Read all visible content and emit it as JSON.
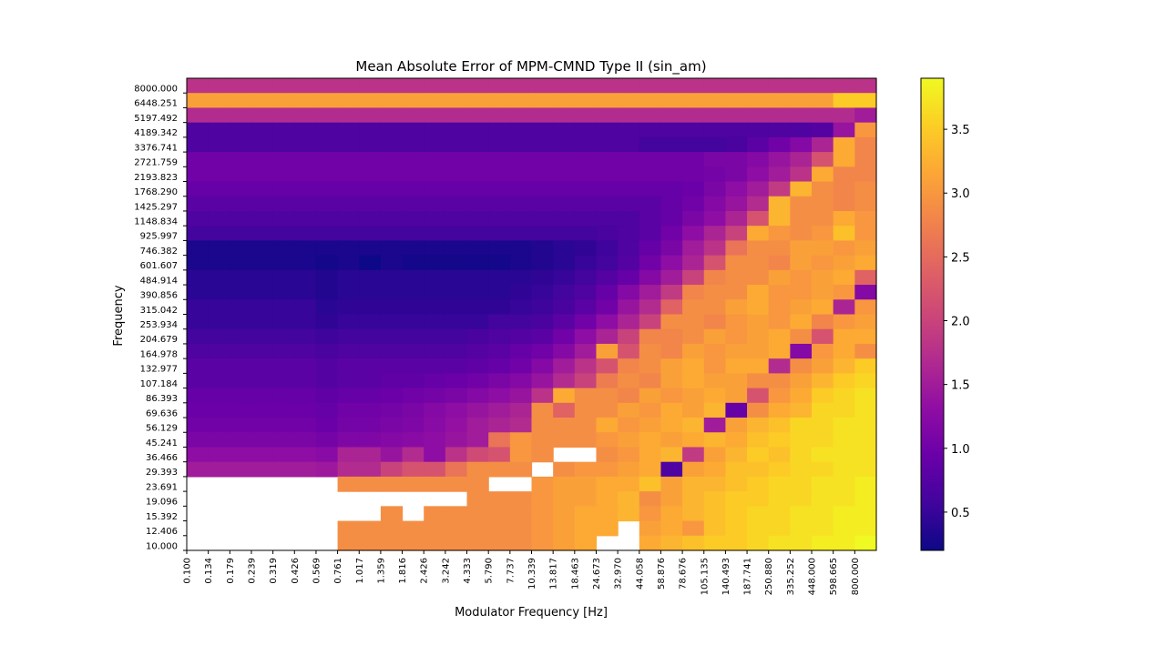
{
  "chart_data": {
    "type": "heatmap",
    "title": "Mean Absolute Error of MPM-CMND Type II  (sin_am)",
    "xlabel": "Modulator Frequency [Hz]",
    "ylabel": "Frequency",
    "colormap": "plasma",
    "colorbar": {
      "min": 0.2,
      "max": 3.9,
      "ticks": [
        "0.5",
        "1.0",
        "1.5",
        "2.0",
        "2.5",
        "3.0",
        "3.5"
      ]
    },
    "x_tick_labels": [
      "0.100",
      "0.134",
      "0.179",
      "0.239",
      "0.319",
      "0.426",
      "0.569",
      "0.761",
      "1.017",
      "1.359",
      "1.816",
      "2.426",
      "3.242",
      "4.333",
      "5.790",
      "7.737",
      "10.339",
      "13.817",
      "18.463",
      "24.673",
      "32.970",
      "44.058",
      "58.876",
      "78.676",
      "105.135",
      "140.493",
      "187.741",
      "250.880",
      "335.252",
      "448.000",
      "598.665",
      "800.000"
    ],
    "y_tick_labels": [
      "8000.000",
      "6448.251",
      "5197.492",
      "4189.342",
      "3376.741",
      "2721.759",
      "2193.823",
      "1768.290",
      "1425.297",
      "1148.834",
      "925.997",
      "746.382",
      "601.607",
      "484.914",
      "390.856",
      "315.042",
      "253.934",
      "204.679",
      "164.978",
      "132.977",
      "107.184",
      "86.393",
      "69.636",
      "56.129",
      "45.241",
      "36.466",
      "29.393",
      "23.691",
      "19.096",
      "15.392",
      "12.406",
      "10.000"
    ],
    "n_rows": 32,
    "n_cols": 32,
    "values_note": "rows listed top (8000.000) to bottom (10.000); columns left (0.100) to right (800.000); null = missing cell",
    "values": [
      [
        1.8,
        1.8,
        1.8,
        1.8,
        1.8,
        1.8,
        1.8,
        1.8,
        1.8,
        1.8,
        1.8,
        1.8,
        1.8,
        1.8,
        1.8,
        1.8,
        1.8,
        1.8,
        1.8,
        1.8,
        1.8,
        1.8,
        1.8,
        1.8,
        1.8,
        1.8,
        1.8,
        1.8,
        1.8,
        1.8,
        1.8,
        1.8
      ],
      [
        3.1,
        3.1,
        3.1,
        3.1,
        3.1,
        3.1,
        3.1,
        3.1,
        3.1,
        3.1,
        3.1,
        3.1,
        3.1,
        3.1,
        3.1,
        3.1,
        3.1,
        3.1,
        3.1,
        3.1,
        3.1,
        3.1,
        3.1,
        3.1,
        3.1,
        3.1,
        3.1,
        3.1,
        3.1,
        3.1,
        3.5,
        3.5
      ],
      [
        1.7,
        1.7,
        1.7,
        1.7,
        1.7,
        1.7,
        1.7,
        1.7,
        1.7,
        1.7,
        1.7,
        1.7,
        1.7,
        1.7,
        1.7,
        1.7,
        1.7,
        1.7,
        1.7,
        1.7,
        1.7,
        1.7,
        1.7,
        1.7,
        1.7,
        1.7,
        1.7,
        1.7,
        1.7,
        1.7,
        1.7,
        1.5
      ],
      [
        0.7,
        0.7,
        0.7,
        0.7,
        0.7,
        0.7,
        0.7,
        0.7,
        0.7,
        0.7,
        0.7,
        0.7,
        0.7,
        0.7,
        0.7,
        0.7,
        0.7,
        0.7,
        0.7,
        0.7,
        0.7,
        0.7,
        0.7,
        0.7,
        0.7,
        0.7,
        0.7,
        0.7,
        0.7,
        0.75,
        1.4,
        3.0
      ],
      [
        0.7,
        0.7,
        0.7,
        0.7,
        0.7,
        0.7,
        0.7,
        0.7,
        0.7,
        0.7,
        0.7,
        0.7,
        0.7,
        0.7,
        0.7,
        0.7,
        0.7,
        0.7,
        0.7,
        0.7,
        0.7,
        0.6,
        0.6,
        0.6,
        0.6,
        0.65,
        0.8,
        1.0,
        1.2,
        1.6,
        3.2,
        2.8
      ],
      [
        1.0,
        1.0,
        1.0,
        1.0,
        1.0,
        1.0,
        1.0,
        1.0,
        1.0,
        1.0,
        1.0,
        1.0,
        1.0,
        1.0,
        1.0,
        1.0,
        1.0,
        1.0,
        1.0,
        1.0,
        1.0,
        1.0,
        1.0,
        1.0,
        1.1,
        1.1,
        1.2,
        1.4,
        1.6,
        2.2,
        3.2,
        2.8
      ],
      [
        1.0,
        1.0,
        1.0,
        1.0,
        1.0,
        1.0,
        1.0,
        1.0,
        1.0,
        1.0,
        1.0,
        1.0,
        1.0,
        1.0,
        1.0,
        1.0,
        1.0,
        1.0,
        1.0,
        1.0,
        1.0,
        1.0,
        1.0,
        1.0,
        1.05,
        1.1,
        1.3,
        1.5,
        1.8,
        3.2,
        2.8,
        2.8
      ],
      [
        0.9,
        0.9,
        0.9,
        0.9,
        0.9,
        0.9,
        0.9,
        0.9,
        0.9,
        0.9,
        0.9,
        0.9,
        0.9,
        0.9,
        0.9,
        0.9,
        0.9,
        0.9,
        0.9,
        0.9,
        0.9,
        0.9,
        0.9,
        0.95,
        1.1,
        1.3,
        1.5,
        1.9,
        3.3,
        2.9,
        2.8,
        2.9
      ],
      [
        0.8,
        0.8,
        0.8,
        0.8,
        0.8,
        0.8,
        0.8,
        0.8,
        0.8,
        0.8,
        0.8,
        0.8,
        0.8,
        0.8,
        0.8,
        0.8,
        0.8,
        0.8,
        0.8,
        0.8,
        0.8,
        0.8,
        0.9,
        1.0,
        1.2,
        1.4,
        1.7,
        3.3,
        2.9,
        2.9,
        2.8,
        2.9
      ],
      [
        0.7,
        0.7,
        0.7,
        0.7,
        0.7,
        0.7,
        0.7,
        0.7,
        0.7,
        0.7,
        0.7,
        0.7,
        0.7,
        0.7,
        0.7,
        0.7,
        0.7,
        0.7,
        0.7,
        0.7,
        0.7,
        0.8,
        0.9,
        1.1,
        1.3,
        1.6,
        2.2,
        3.3,
        2.9,
        2.9,
        3.2,
        3.0
      ],
      [
        0.6,
        0.6,
        0.6,
        0.6,
        0.6,
        0.6,
        0.6,
        0.6,
        0.6,
        0.6,
        0.6,
        0.6,
        0.6,
        0.6,
        0.6,
        0.6,
        0.6,
        0.6,
        0.6,
        0.65,
        0.7,
        0.8,
        1.0,
        1.3,
        1.6,
        2.0,
        3.2,
        3.0,
        2.9,
        3.0,
        3.4,
        3.0
      ],
      [
        0.3,
        0.3,
        0.3,
        0.3,
        0.3,
        0.3,
        0.3,
        0.3,
        0.3,
        0.3,
        0.3,
        0.3,
        0.3,
        0.3,
        0.3,
        0.3,
        0.35,
        0.4,
        0.45,
        0.55,
        0.7,
        0.9,
        1.1,
        1.5,
        1.8,
        2.6,
        2.9,
        2.9,
        3.1,
        3.1,
        3.0,
        3.1
      ],
      [
        0.3,
        0.3,
        0.3,
        0.3,
        0.3,
        0.3,
        0.25,
        0.3,
        0.2,
        0.3,
        0.25,
        0.25,
        0.25,
        0.25,
        0.25,
        0.3,
        0.35,
        0.4,
        0.5,
        0.6,
        0.75,
        1.0,
        1.3,
        1.6,
        2.2,
        2.9,
        2.9,
        2.8,
        3.1,
        3.0,
        3.1,
        3.2
      ],
      [
        0.4,
        0.4,
        0.4,
        0.4,
        0.4,
        0.4,
        0.35,
        0.4,
        0.4,
        0.4,
        0.4,
        0.4,
        0.4,
        0.4,
        0.4,
        0.4,
        0.45,
        0.5,
        0.6,
        0.75,
        0.9,
        1.2,
        1.5,
        2.0,
        2.8,
        2.9,
        2.9,
        3.1,
        3.0,
        3.1,
        3.2,
        2.4
      ],
      [
        0.4,
        0.4,
        0.4,
        0.4,
        0.4,
        0.4,
        0.35,
        0.4,
        0.4,
        0.4,
        0.4,
        0.4,
        0.4,
        0.4,
        0.4,
        0.45,
        0.5,
        0.6,
        0.7,
        0.9,
        1.2,
        1.5,
        1.9,
        2.8,
        2.9,
        2.9,
        3.2,
        3.0,
        3.0,
        3.1,
        3.0,
        1.2
      ],
      [
        0.5,
        0.5,
        0.5,
        0.5,
        0.5,
        0.5,
        0.4,
        0.45,
        0.45,
        0.45,
        0.45,
        0.45,
        0.45,
        0.45,
        0.45,
        0.5,
        0.55,
        0.65,
        0.8,
        1.0,
        1.4,
        1.7,
        2.4,
        2.9,
        2.9,
        3.1,
        3.2,
        3.0,
        3.1,
        3.2,
        1.6,
        3.0
      ],
      [
        0.5,
        0.5,
        0.5,
        0.5,
        0.5,
        0.5,
        0.45,
        0.5,
        0.5,
        0.5,
        0.5,
        0.5,
        0.5,
        0.5,
        0.6,
        0.6,
        0.65,
        0.8,
        1.0,
        1.3,
        1.6,
        2.0,
        2.9,
        2.9,
        2.8,
        3.0,
        3.1,
        3.0,
        3.2,
        2.8,
        3.0,
        3.1
      ],
      [
        0.6,
        0.6,
        0.6,
        0.6,
        0.6,
        0.6,
        0.55,
        0.6,
        0.6,
        0.6,
        0.6,
        0.6,
        0.6,
        0.65,
        0.7,
        0.75,
        0.8,
        1.0,
        1.3,
        1.6,
        2.0,
        2.8,
        2.8,
        2.9,
        3.1,
        3.0,
        3.1,
        3.2,
        2.9,
        2.2,
        3.2,
        3.2
      ],
      [
        0.7,
        0.7,
        0.7,
        0.7,
        0.7,
        0.7,
        0.65,
        0.7,
        0.7,
        0.7,
        0.7,
        0.7,
        0.7,
        0.75,
        0.8,
        0.9,
        1.0,
        1.2,
        1.5,
        3.1,
        2.2,
        2.9,
        2.8,
        3.1,
        3.0,
        3.1,
        3.1,
        3.2,
        1.2,
        3.0,
        3.2,
        2.9
      ],
      [
        0.8,
        0.8,
        0.8,
        0.8,
        0.8,
        0.8,
        0.75,
        0.8,
        0.8,
        0.8,
        0.8,
        0.8,
        0.8,
        0.85,
        0.9,
        1.0,
        1.2,
        1.5,
        1.8,
        2.2,
        2.8,
        2.9,
        3.1,
        3.2,
        3.0,
        3.2,
        3.2,
        1.7,
        2.9,
        3.1,
        3.3,
        3.5
      ],
      [
        0.8,
        0.8,
        0.8,
        0.8,
        0.8,
        0.8,
        0.75,
        0.8,
        0.8,
        0.85,
        0.85,
        0.9,
        0.95,
        1.0,
        1.1,
        1.2,
        1.4,
        1.7,
        2.0,
        2.7,
        2.9,
        2.8,
        3.1,
        3.2,
        3.1,
        3.1,
        2.9,
        2.9,
        3.1,
        3.3,
        3.5,
        3.6
      ],
      [
        0.9,
        0.9,
        0.9,
        0.9,
        0.9,
        0.9,
        0.85,
        0.9,
        0.9,
        0.95,
        1.0,
        1.05,
        1.1,
        1.2,
        1.3,
        1.4,
        1.8,
        3.2,
        2.9,
        2.9,
        2.8,
        3.1,
        3.0,
        3.1,
        3.2,
        3.1,
        2.2,
        3.0,
        3.2,
        3.5,
        3.6,
        3.7
      ],
      [
        0.95,
        0.95,
        0.95,
        0.95,
        0.95,
        0.95,
        0.9,
        1.0,
        1.0,
        1.05,
        1.1,
        1.2,
        1.3,
        1.4,
        1.5,
        1.6,
        2.9,
        2.4,
        2.9,
        2.9,
        3.1,
        3.0,
        3.2,
        3.1,
        3.3,
        0.9,
        2.9,
        3.2,
        3.3,
        3.6,
        3.6,
        3.7
      ],
      [
        1.0,
        1.0,
        1.0,
        1.0,
        1.0,
        1.0,
        0.95,
        1.05,
        1.05,
        1.1,
        1.15,
        1.25,
        1.35,
        1.5,
        1.6,
        1.7,
        2.9,
        2.9,
        2.9,
        3.2,
        3.0,
        3.1,
        3.2,
        3.3,
        1.5,
        3.1,
        3.3,
        3.4,
        3.6,
        3.6,
        3.7,
        3.7
      ],
      [
        1.1,
        1.1,
        1.1,
        1.1,
        1.1,
        1.1,
        1.05,
        1.15,
        1.15,
        1.2,
        1.25,
        1.3,
        1.4,
        1.5,
        2.6,
        3.0,
        2.9,
        2.9,
        2.9,
        3.0,
        3.1,
        3.2,
        3.1,
        3.2,
        3.3,
        3.2,
        3.4,
        3.5,
        3.6,
        3.6,
        3.7,
        3.7
      ],
      [
        1.3,
        1.3,
        1.3,
        1.3,
        1.3,
        1.3,
        1.25,
        1.6,
        1.6,
        1.4,
        1.7,
        1.3,
        1.8,
        2.1,
        2.2,
        3.0,
        2.9,
        null,
        null,
        2.9,
        3.0,
        3.2,
        3.3,
        1.9,
        3.1,
        3.3,
        3.5,
        3.4,
        3.6,
        3.7,
        3.7,
        3.7
      ],
      [
        1.5,
        1.5,
        1.5,
        1.5,
        1.5,
        1.5,
        1.45,
        1.7,
        1.7,
        2.0,
        2.2,
        2.2,
        2.6,
        2.9,
        2.9,
        2.9,
        null,
        2.9,
        3.0,
        3.0,
        3.1,
        3.2,
        0.7,
        3.1,
        3.2,
        3.4,
        3.4,
        3.5,
        3.6,
        3.6,
        3.7,
        3.7
      ],
      [
        null,
        null,
        null,
        null,
        null,
        null,
        null,
        2.9,
        2.9,
        2.9,
        2.9,
        2.9,
        2.9,
        2.9,
        null,
        null,
        3.0,
        3.1,
        3.1,
        3.2,
        3.2,
        3.4,
        3.1,
        3.3,
        3.3,
        3.4,
        3.5,
        3.6,
        3.6,
        3.7,
        3.7,
        3.8
      ],
      [
        null,
        null,
        null,
        null,
        null,
        null,
        null,
        null,
        null,
        null,
        null,
        null,
        null,
        2.9,
        2.9,
        2.9,
        3.0,
        3.1,
        3.1,
        3.2,
        3.3,
        2.9,
        3.1,
        3.3,
        3.4,
        3.5,
        3.5,
        3.6,
        3.6,
        3.7,
        3.7,
        3.8
      ],
      [
        null,
        null,
        null,
        null,
        null,
        null,
        null,
        null,
        null,
        2.9,
        null,
        2.9,
        2.9,
        2.9,
        2.9,
        2.9,
        3.0,
        3.1,
        3.2,
        3.2,
        3.3,
        3.0,
        3.2,
        3.3,
        3.4,
        3.5,
        3.6,
        3.6,
        3.7,
        3.7,
        3.8,
        3.8
      ],
      [
        null,
        null,
        null,
        null,
        null,
        null,
        null,
        2.9,
        2.9,
        2.9,
        2.9,
        2.9,
        2.9,
        2.9,
        2.9,
        2.9,
        3.0,
        3.1,
        3.2,
        3.2,
        null,
        3.1,
        3.2,
        3.0,
        3.4,
        3.5,
        3.6,
        3.6,
        3.7,
        3.7,
        3.8,
        3.8
      ],
      [
        null,
        null,
        null,
        null,
        null,
        null,
        null,
        2.9,
        2.9,
        2.9,
        2.9,
        2.9,
        2.9,
        2.9,
        2.9,
        2.9,
        3.0,
        3.1,
        3.2,
        null,
        null,
        3.2,
        3.3,
        3.4,
        3.5,
        3.5,
        3.6,
        3.7,
        3.7,
        3.8,
        3.8,
        3.9
      ]
    ]
  }
}
